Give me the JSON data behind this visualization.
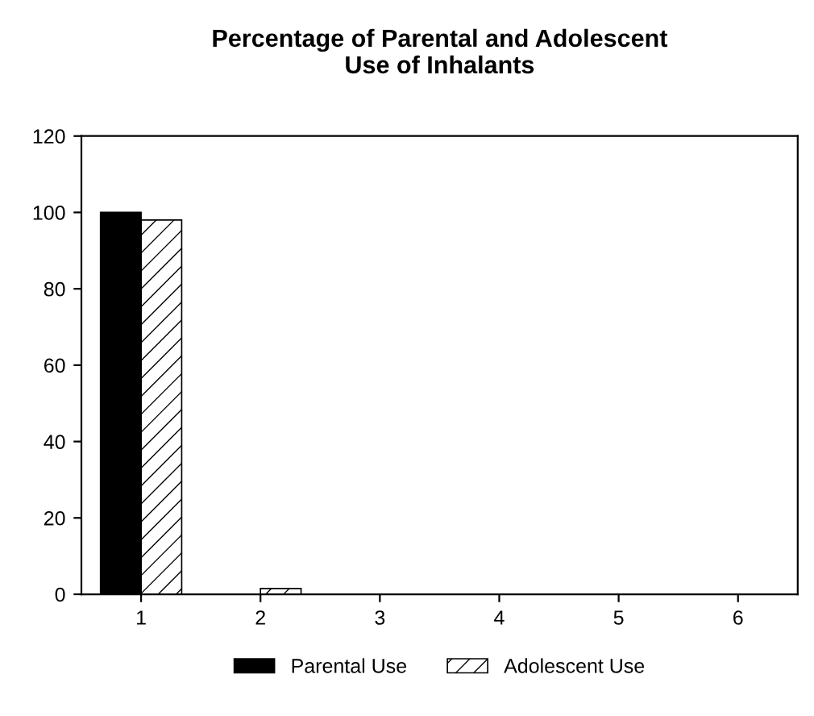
{
  "chart_data": {
    "type": "bar",
    "title": "Percentage of Parental and Adolescent\nUse of Inhalants",
    "categories": [
      "1",
      "2",
      "3",
      "4",
      "5",
      "6"
    ],
    "series": [
      {
        "name": "Parental Use",
        "color": "#000000",
        "values": [
          100,
          0,
          0,
          0,
          0,
          0
        ]
      },
      {
        "name": "Adolescent Use",
        "color": "#000000",
        "values": [
          98,
          1.5,
          0,
          0,
          0,
          0
        ]
      }
    ],
    "ylim": [
      0,
      120
    ],
    "yticks": [
      0,
      20,
      40,
      60,
      80,
      100,
      120
    ],
    "grid": false,
    "legend": "bottom"
  }
}
